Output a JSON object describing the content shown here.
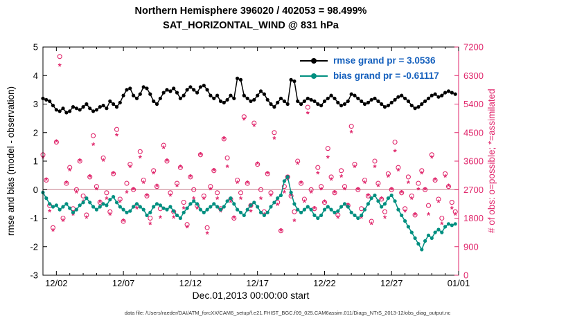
{
  "title": {
    "line1": "Northern Hemisphere 396020 / 402053 = 98.499%",
    "line2": "SAT_HORIZONTAL_WIND @ 831 hPa"
  },
  "caption": "data file: /Users/raeder/DAI/ATM_forcXX/CAM6_setup/f.e21.FHIST_BGC.f09_025.CAM6assim.011/Diags_NTrS_2013-12/obs_diag_output.nc",
  "colors": {
    "obs_pink": "#e0266b",
    "bias_teal": "#008f80",
    "rmse_black": "#000000",
    "legend_text_blue": "#1560bd",
    "zero_line": "#d8a7b0"
  },
  "chart_data": {
    "type": "line",
    "x_axis": {
      "label": "Dec.01,2013 00:00:00 start",
      "range_days": [
        1,
        32
      ],
      "start_day": 1,
      "step_days": 0.25,
      "n_points": 124,
      "tick_days": [
        2,
        7,
        12,
        17,
        22,
        27,
        32
      ],
      "tick_labels": [
        "12/02",
        "12/07",
        "12/12",
        "12/17",
        "12/22",
        "12/27",
        "01/01"
      ]
    },
    "left_axis": {
      "label": "rmse and bias (model - observation)",
      "range": [
        -3,
        5
      ],
      "ticks": [
        -3,
        -2,
        -1,
        0,
        1,
        2,
        3,
        4,
        5
      ]
    },
    "right_axis": {
      "label": "# of obs: o=possible; *=assimilated",
      "range": [
        0,
        7200
      ],
      "ticks": [
        0,
        900,
        1800,
        2700,
        3600,
        4500,
        5400,
        6300,
        7200
      ]
    },
    "zero_line_left_value": 0,
    "series": [
      {
        "name": "rmse",
        "legend": "rmse grand pr = 3.0536",
        "axis": "left",
        "style": "line-dot",
        "color": "#000000",
        "values": [
          3.2,
          3.15,
          3.1,
          2.95,
          2.8,
          2.75,
          2.85,
          2.7,
          2.75,
          2.9,
          2.85,
          2.8,
          2.9,
          3.0,
          2.85,
          2.75,
          2.8,
          2.9,
          2.95,
          2.85,
          3.1,
          3.0,
          2.9,
          3.05,
          3.3,
          3.5,
          3.55,
          3.3,
          3.2,
          3.35,
          3.6,
          3.55,
          3.35,
          3.1,
          3.0,
          3.2,
          3.4,
          3.5,
          3.45,
          3.55,
          3.4,
          3.2,
          3.3,
          3.5,
          3.6,
          3.5,
          3.4,
          3.6,
          3.65,
          3.5,
          3.3,
          3.2,
          3.3,
          3.1,
          3.05,
          3.15,
          3.3,
          3.2,
          3.9,
          3.85,
          3.3,
          3.2,
          3.1,
          3.15,
          3.3,
          3.45,
          3.35,
          3.15,
          3.0,
          2.9,
          3.05,
          3.2,
          3.1,
          3.0,
          3.85,
          3.8,
          3.1,
          3.0,
          3.1,
          3.2,
          3.15,
          3.1,
          3.0,
          2.95,
          3.1,
          3.2,
          3.3,
          3.2,
          3.05,
          2.95,
          3.0,
          3.1,
          3.35,
          3.3,
          3.2,
          3.1,
          3.0,
          3.05,
          3.15,
          3.2,
          3.1,
          3.0,
          2.9,
          2.95,
          3.05,
          3.15,
          3.25,
          3.3,
          3.2,
          3.1,
          2.95,
          2.85,
          2.9,
          3.0,
          3.1,
          3.2,
          3.3,
          3.35,
          3.25,
          3.3,
          3.4,
          3.45,
          3.4,
          3.35
        ]
      },
      {
        "name": "bias",
        "legend": "bias grand pr = -0.61117",
        "axis": "left",
        "style": "line-dot",
        "color": "#008f80",
        "values": [
          -0.1,
          -0.3,
          -0.5,
          -0.6,
          -0.55,
          -0.7,
          -0.6,
          -0.5,
          -0.65,
          -0.8,
          -0.7,
          -0.55,
          -0.45,
          -0.3,
          -0.45,
          -0.6,
          -0.7,
          -0.6,
          -0.5,
          -0.55,
          -0.35,
          -0.25,
          -0.45,
          -0.6,
          -0.7,
          -0.8,
          -0.75,
          -0.6,
          -0.5,
          -0.6,
          -0.7,
          -0.9,
          -0.8,
          -0.6,
          -0.5,
          -0.55,
          -0.65,
          -0.7,
          -0.6,
          -0.75,
          -0.9,
          -1.0,
          -0.8,
          -0.65,
          -0.5,
          -0.4,
          -0.5,
          -0.7,
          -0.8,
          -0.7,
          -0.6,
          -0.5,
          -0.6,
          -0.7,
          -0.6,
          -0.4,
          -0.3,
          -0.5,
          -0.7,
          -0.8,
          -0.9,
          -0.7,
          -0.55,
          -0.45,
          -0.6,
          -0.8,
          -0.9,
          -0.8,
          -0.6,
          -0.45,
          -0.3,
          -0.2,
          0.3,
          0.45,
          -0.1,
          -0.5,
          -0.7,
          -0.8,
          -0.7,
          -0.6,
          -0.7,
          -0.9,
          -1.0,
          -0.9,
          -0.7,
          -0.6,
          -0.7,
          -0.8,
          -0.75,
          -0.6,
          -0.5,
          -0.6,
          -0.8,
          -0.9,
          -1.0,
          -0.9,
          -0.7,
          -0.5,
          -0.3,
          -0.2,
          -0.4,
          -0.6,
          -0.5,
          -0.3,
          -0.2,
          -0.4,
          -0.7,
          -0.9,
          -1.1,
          -1.3,
          -1.5,
          -1.7,
          -1.9,
          -2.1,
          -1.8,
          -1.6,
          -1.7,
          -1.5,
          -1.4,
          -1.5,
          -1.3,
          -1.2,
          -1.25,
          -1.2
        ]
      },
      {
        "name": "possible",
        "marker": "o",
        "axis": "right",
        "style": "scatter-circle",
        "color": "#e0266b",
        "values": [
          3800,
          3000,
          2200,
          1500,
          4200,
          6900,
          1800,
          2900,
          3400,
          2100,
          2700,
          3600,
          2500,
          1900,
          3100,
          4400,
          2800,
          2300,
          3700,
          2600,
          2000,
          3200,
          4600,
          2400,
          1700,
          2900,
          3500,
          2700,
          2200,
          3900,
          3000,
          2500,
          1800,
          3300,
          2800,
          2100,
          4100,
          3600,
          2600,
          2000,
          2900,
          3400,
          2300,
          1600,
          3100,
          2700,
          2200,
          3800,
          2500,
          1500,
          2800,
          3300,
          2600,
          2100,
          4300,
          3700,
          2400,
          1800,
          3000,
          2600,
          5000,
          2900,
          2200,
          4800,
          3500,
          2700,
          2000,
          3200,
          2600,
          4500,
          2300,
          1400,
          2800,
          3100,
          2500,
          2000,
          3600,
          2900,
          2400,
          5300,
          2700,
          2100,
          3400,
          2800,
          2300,
          4000,
          3100,
          2600,
          1900,
          3300,
          2800,
          2200,
          4700,
          3500,
          2700,
          2100,
          3000,
          2500,
          1700,
          3600,
          2900,
          2400,
          2000,
          3200,
          2700,
          4200,
          3400,
          2600,
          2100,
          3100,
          2500,
          1900,
          2900,
          3300,
          2700,
          2200,
          3800,
          3000,
          2400,
          1800,
          3200,
          2800,
          2300,
          2000
        ]
      },
      {
        "name": "assimilated",
        "marker": "*",
        "axis": "right",
        "style": "scatter-asterisk",
        "color": "#e0266b",
        "values": [
          3700,
          3000,
          2000,
          1400,
          4200,
          6600,
          1700,
          2900,
          3300,
          1900,
          2600,
          3600,
          2300,
          1800,
          3100,
          4100,
          2700,
          2300,
          3600,
          2400,
          1900,
          3200,
          4400,
          2300,
          1700,
          2600,
          3400,
          2700,
          2100,
          3700,
          2900,
          2500,
          1600,
          3200,
          2800,
          1800,
          4000,
          3600,
          2500,
          1800,
          2800,
          3400,
          2100,
          1500,
          3100,
          2400,
          2100,
          3800,
          2400,
          1300,
          2700,
          3300,
          2400,
          2000,
          4300,
          3400,
          2300,
          1800,
          2900,
          2400,
          4900,
          2900,
          2000,
          4700,
          3500,
          2400,
          1900,
          3200,
          2500,
          4300,
          2200,
          1400,
          2600,
          3000,
          2500,
          1700,
          3500,
          2900,
          2300,
          5100,
          2600,
          2100,
          3200,
          2700,
          2300,
          3700,
          3000,
          2600,
          1800,
          3100,
          2700,
          2200,
          4500,
          3400,
          2700,
          1800,
          2900,
          2500,
          1600,
          3400,
          2800,
          2400,
          1800,
          3100,
          2700,
          3900,
          3300,
          2600,
          2000,
          2900,
          2400,
          1900,
          2700,
          3200,
          2700,
          1900,
          3700,
          3000,
          2300,
          1600,
          3100,
          2800,
          2100,
          1900
        ]
      }
    ]
  }
}
